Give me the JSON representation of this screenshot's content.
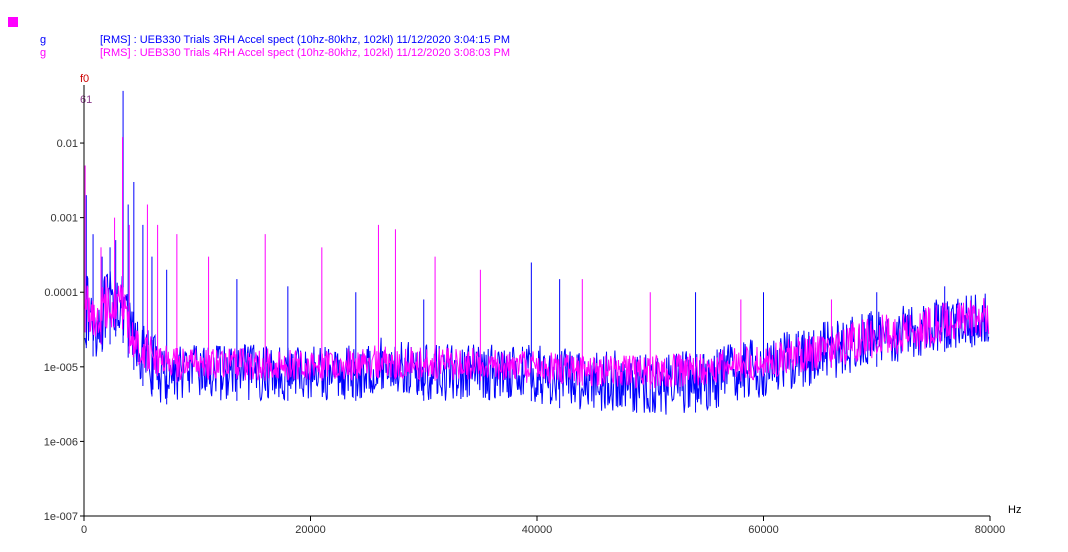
{
  "chart_data": {
    "type": "line",
    "x_unit": "Hz",
    "y_unit": "g",
    "y_scale": "log",
    "xlim": [
      0,
      80000
    ],
    "ylim": [
      1e-07,
      0.06
    ],
    "x_ticks": [
      0,
      20000,
      40000,
      60000,
      80000
    ],
    "x_tick_labels": [
      "0",
      "20000",
      "40000",
      "60000",
      "80000"
    ],
    "y_ticks": [
      1e-07,
      1e-06,
      1e-05,
      0.0001,
      0.001,
      0.01
    ],
    "y_tick_labels": [
      "1e-007",
      "1e-006",
      "1e-005",
      "0.0001",
      "0.001",
      "0.01"
    ],
    "cursor_labels": [
      {
        "text": "f0",
        "color": "#cc0000"
      },
      {
        "text": "61",
        "color": "#8b3a8b"
      }
    ],
    "grid": false,
    "legend_position": "top-left",
    "series": [
      {
        "name": "[RMS] : UEB330 Trials 3RH Accel spect (10hz-80khz, 102kl) 11/12/2020 3:04:15 PM",
        "unit_label": "g",
        "color": "#0000ff",
        "envelope_x": [
          0,
          500,
          1000,
          1500,
          2000,
          2500,
          3000,
          3500,
          4000,
          5000,
          6000,
          7000,
          8000,
          9000,
          10000,
          12000,
          15000,
          20000,
          25000,
          26000,
          30000,
          35000,
          39000,
          40000,
          45000,
          50000,
          55000,
          60000,
          65000,
          70000,
          75000,
          80000
        ],
        "envelope_low": [
          2e-05,
          1.5e-05,
          1.3e-05,
          1.5e-05,
          2e-05,
          2e-05,
          3e-05,
          2e-05,
          1.2e-05,
          6e-06,
          4e-06,
          3e-06,
          3.5e-06,
          4e-06,
          4e-06,
          3.5e-06,
          3.5e-06,
          3.5e-06,
          3.5e-06,
          5e-06,
          3.5e-06,
          3.5e-06,
          4e-06,
          3e-06,
          2.5e-06,
          2.2e-06,
          2.5e-06,
          4e-06,
          6e-06,
          1e-05,
          1.5e-05,
          2e-05
        ],
        "envelope_high": [
          0.0002,
          0.00015,
          0.0001,
          0.00012,
          0.0002,
          0.0002,
          0.00025,
          0.00015,
          8e-05,
          4e-05,
          3e-05,
          2e-05,
          2e-05,
          2e-05,
          2e-05,
          2e-05,
          2e-05,
          2e-05,
          2e-05,
          2.5e-05,
          2e-05,
          2e-05,
          2e-05,
          2e-05,
          1.8e-05,
          1.5e-05,
          1.8e-05,
          2.5e-05,
          4e-05,
          6e-05,
          8e-05,
          0.0001
        ],
        "peaks": [
          {
            "x": 200,
            "y": 0.002
          },
          {
            "x": 800,
            "y": 0.0006
          },
          {
            "x": 1600,
            "y": 0.0003
          },
          {
            "x": 2300,
            "y": 0.0004
          },
          {
            "x": 2800,
            "y": 0.0005
          },
          {
            "x": 3450,
            "y": 0.05
          },
          {
            "x": 3900,
            "y": 0.0015
          },
          {
            "x": 4400,
            "y": 0.003
          },
          {
            "x": 5200,
            "y": 0.0008
          },
          {
            "x": 6000,
            "y": 0.0003
          },
          {
            "x": 7300,
            "y": 0.0002
          },
          {
            "x": 13500,
            "y": 0.00015
          },
          {
            "x": 18000,
            "y": 0.00012
          },
          {
            "x": 24000,
            "y": 0.0001
          },
          {
            "x": 30000,
            "y": 8e-05
          },
          {
            "x": 39500,
            "y": 0.00025
          },
          {
            "x": 42000,
            "y": 0.00015
          },
          {
            "x": 54000,
            "y": 0.0001
          },
          {
            "x": 60000,
            "y": 0.0001
          },
          {
            "x": 70000,
            "y": 0.0001
          },
          {
            "x": 76000,
            "y": 0.00012
          }
        ]
      },
      {
        "name": "[RMS] : UEB330 Trials 4RH Accel spect (10hz-80khz, 102kl) 11/12/2020 3:08:03 PM",
        "unit_label": "g",
        "color": "#ff00ff",
        "envelope_x": [
          0,
          500,
          1000,
          1500,
          2000,
          2500,
          3000,
          3500,
          4000,
          5000,
          6000,
          7000,
          8000,
          9000,
          10000,
          12000,
          15000,
          20000,
          25000,
          26000,
          30000,
          35000,
          40000,
          45000,
          50000,
          55000,
          60000,
          65000,
          70000,
          75000,
          80000
        ],
        "envelope_low": [
          3e-05,
          2.5e-05,
          2e-05,
          2e-05,
          3e-05,
          3e-05,
          4e-05,
          3e-05,
          1.5e-05,
          1e-05,
          8e-06,
          7e-06,
          6e-06,
          7e-06,
          7e-06,
          6.5e-06,
          6.5e-06,
          6.5e-06,
          6.5e-06,
          7e-06,
          6.5e-06,
          6.5e-06,
          6e-06,
          5.5e-06,
          5e-06,
          5.5e-06,
          7e-06,
          9e-06,
          1.3e-05,
          1.8e-05,
          2.5e-05
        ],
        "envelope_high": [
          0.0002,
          0.00015,
          0.0001,
          0.0001,
          0.0002,
          0.00015,
          0.0002,
          0.00012,
          5e-05,
          3e-05,
          3e-05,
          2e-05,
          1.8e-05,
          1.8e-05,
          1.8e-05,
          1.8e-05,
          1.8e-05,
          1.8e-05,
          1.8e-05,
          2e-05,
          1.8e-05,
          1.8e-05,
          1.6e-05,
          1.5e-05,
          1.4e-05,
          1.6e-05,
          2e-05,
          3e-05,
          5e-05,
          7e-05,
          9e-05
        ],
        "peaks": [
          {
            "x": 100,
            "y": 0.005
          },
          {
            "x": 1500,
            "y": 0.0004
          },
          {
            "x": 2700,
            "y": 0.001
          },
          {
            "x": 3400,
            "y": 0.012
          },
          {
            "x": 4000,
            "y": 0.0008
          },
          {
            "x": 5600,
            "y": 0.0015
          },
          {
            "x": 6500,
            "y": 0.0008
          },
          {
            "x": 8200,
            "y": 0.0006
          },
          {
            "x": 11000,
            "y": 0.0003
          },
          {
            "x": 16000,
            "y": 0.0006
          },
          {
            "x": 21000,
            "y": 0.0004
          },
          {
            "x": 26000,
            "y": 0.0008
          },
          {
            "x": 27500,
            "y": 0.0007
          },
          {
            "x": 31000,
            "y": 0.0003
          },
          {
            "x": 35000,
            "y": 0.0002
          },
          {
            "x": 44000,
            "y": 0.00015
          },
          {
            "x": 50000,
            "y": 0.0001
          },
          {
            "x": 58000,
            "y": 8e-05
          },
          {
            "x": 66000,
            "y": 8e-05
          }
        ]
      }
    ]
  }
}
